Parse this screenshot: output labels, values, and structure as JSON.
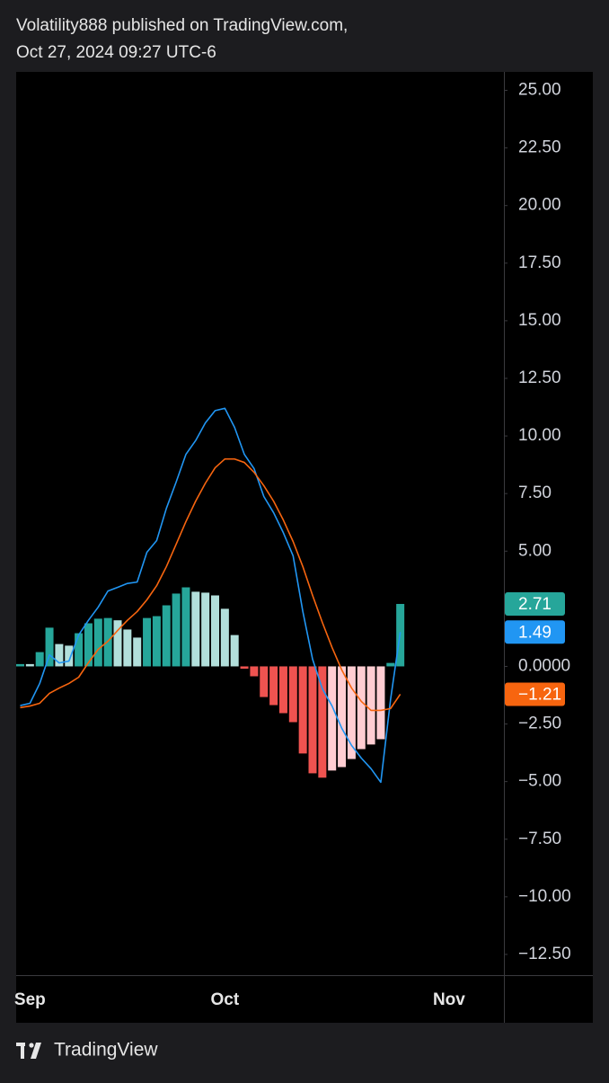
{
  "header": {
    "line1": "Volatility888 published on TradingView.com,",
    "line2": "Oct 27, 2024 09:27 UTC-6"
  },
  "footer": {
    "brand": "TradingView"
  },
  "chart_data": {
    "type": "macd",
    "grid": false,
    "categories": [
      null,
      "Sep",
      null,
      null,
      null,
      null,
      null,
      null,
      null,
      null,
      null,
      null,
      null,
      null,
      null,
      null,
      null,
      null,
      null,
      null,
      null,
      "Oct",
      null,
      null,
      null,
      null,
      null,
      null,
      null,
      null,
      null,
      null,
      null,
      null,
      null,
      null,
      null,
      null,
      null,
      null,
      null,
      null,
      null,
      null,
      "Nov",
      null,
      null,
      null,
      null,
      null
    ],
    "ylim": [
      -13.4,
      25.8
    ],
    "yticks": [
      {
        "value": 25,
        "label": "25.00"
      },
      {
        "value": 22.5,
        "label": "22.50"
      },
      {
        "value": 20,
        "label": "20.00"
      },
      {
        "value": 17.5,
        "label": "17.50"
      },
      {
        "value": 15,
        "label": "15.00"
      },
      {
        "value": 12.5,
        "label": "12.50"
      },
      {
        "value": 10,
        "label": "10.00"
      },
      {
        "value": 7.5,
        "label": "7.50"
      },
      {
        "value": 5,
        "label": "5.00"
      },
      {
        "value": 0,
        "label": "0.0000"
      },
      {
        "value": -2.5,
        "label": "−2.50"
      },
      {
        "value": -5,
        "label": "−5.00"
      },
      {
        "value": -7.5,
        "label": "−7.50"
      },
      {
        "value": -10,
        "label": "−10.00"
      },
      {
        "value": -12.5,
        "label": "−12.50"
      }
    ],
    "series": [
      {
        "type": "bar",
        "values": [
          0.1,
          0.1,
          0.62,
          1.68,
          0.97,
          0.9,
          1.44,
          1.87,
          2.07,
          2.1,
          2.0,
          1.6,
          1.25,
          2.1,
          2.18,
          2.65,
          3.16,
          3.43,
          3.24,
          3.2,
          3.08,
          2.5,
          1.36,
          -0.1,
          -0.43,
          -1.33,
          -1.68,
          -2.03,
          -2.42,
          -3.78,
          -4.64,
          -4.83,
          -4.52,
          -4.37,
          -4.02,
          -3.59,
          -3.39,
          -3.16,
          0.15,
          2.71,
          null,
          null,
          null,
          null,
          null,
          null,
          null,
          null,
          null,
          null
        ],
        "colors": [
          "#26a69a",
          "#b2dfdb",
          "#26a69a",
          "#26a69a",
          "#b2dfdb",
          "#b2dfdb",
          "#26a69a",
          "#26a69a",
          "#26a69a",
          "#26a69a",
          "#b2dfdb",
          "#b2dfdb",
          "#b2dfdb",
          "#26a69a",
          "#26a69a",
          "#26a69a",
          "#26a69a",
          "#26a69a",
          "#b2dfdb",
          "#b2dfdb",
          "#b2dfdb",
          "#b2dfdb",
          "#b2dfdb",
          "#ef5350",
          "#ef5350",
          "#ef5350",
          "#ef5350",
          "#ef5350",
          "#ef5350",
          "#ef5350",
          "#ef5350",
          "#ef5350",
          "#ffcdd2",
          "#ffcdd2",
          "#ffcdd2",
          "#ffcdd2",
          "#ffcdd2",
          "#ffcdd2",
          "#26a69a",
          "#26a69a",
          null,
          null,
          null,
          null,
          null,
          null,
          null,
          null,
          null,
          null
        ],
        "color": "#26a69a",
        "value_labels": [
          null,
          null,
          null,
          null,
          null,
          null,
          null,
          null,
          null,
          null,
          null,
          null,
          null,
          null,
          null,
          null,
          null,
          null,
          null,
          null,
          null,
          null,
          null,
          null,
          null,
          null,
          null,
          null,
          null,
          null,
          null,
          null,
          null,
          null,
          null,
          null,
          null,
          null,
          null,
          "2.71",
          null,
          null,
          null,
          null,
          null,
          null,
          null,
          null,
          null,
          null
        ]
      },
      {
        "type": "line",
        "color": "#2196f3",
        "values": [
          -1.7,
          -1.6,
          -0.74,
          0.5,
          0.15,
          0.23,
          1.36,
          2.0,
          2.57,
          3.27,
          3.43,
          3.6,
          3.66,
          4.95,
          5.46,
          6.86,
          8.0,
          9.2,
          9.8,
          10.57,
          11.1,
          11.2,
          10.37,
          9.2,
          8.58,
          7.37,
          6.67,
          5.8,
          4.8,
          2.38,
          0.31,
          -0.97,
          -1.72,
          -2.69,
          -3.43,
          -3.98,
          -4.44,
          -5.03,
          -1.44,
          1.49,
          null,
          null,
          null,
          null,
          null,
          null,
          null,
          null,
          null,
          null
        ],
        "value_labels": [
          null,
          null,
          null,
          null,
          null,
          null,
          null,
          null,
          null,
          null,
          null,
          null,
          null,
          null,
          null,
          null,
          null,
          null,
          null,
          null,
          null,
          null,
          null,
          null,
          null,
          null,
          null,
          null,
          null,
          null,
          null,
          null,
          null,
          null,
          null,
          null,
          null,
          null,
          null,
          "1.49",
          null,
          null,
          null,
          null,
          null,
          null,
          null,
          null,
          null,
          null
        ]
      },
      {
        "type": "line",
        "color": "#f7650f",
        "values": [
          -1.79,
          -1.72,
          -1.6,
          -1.17,
          -0.94,
          -0.74,
          -0.47,
          0.16,
          0.74,
          1.09,
          1.56,
          2.0,
          2.38,
          2.89,
          3.5,
          4.33,
          5.3,
          6.28,
          7.17,
          7.95,
          8.62,
          9.0,
          9.0,
          8.85,
          8.42,
          7.84,
          7.17,
          6.35,
          5.42,
          4.33,
          3.08,
          1.91,
          0.82,
          -0.16,
          -0.94,
          -1.52,
          -1.91,
          -1.91,
          -1.83,
          -1.21,
          null,
          null,
          null,
          null,
          null,
          null,
          null,
          null,
          null,
          null
        ],
        "value_labels": [
          null,
          null,
          null,
          null,
          null,
          null,
          null,
          null,
          null,
          null,
          null,
          null,
          null,
          null,
          null,
          null,
          null,
          null,
          null,
          null,
          null,
          null,
          null,
          null,
          null,
          null,
          null,
          null,
          null,
          null,
          null,
          null,
          null,
          null,
          null,
          null,
          null,
          null,
          null,
          "−1.21",
          null,
          null,
          null,
          null,
          null,
          null,
          null,
          null,
          null,
          null
        ]
      }
    ]
  }
}
